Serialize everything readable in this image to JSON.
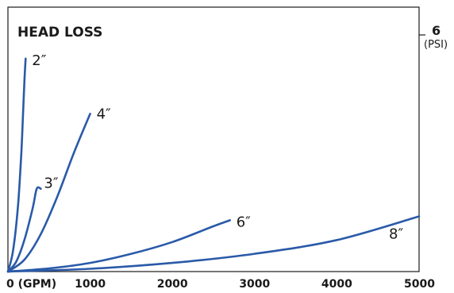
{
  "chart_data": {
    "type": "line",
    "title": "HEAD LOSS",
    "xlabel": "(GPM)",
    "ylabel": "(PSI)",
    "xlim": [
      0,
      5000
    ],
    "ylim": [
      0,
      6
    ],
    "x_ticks": [
      "0 (GPM)",
      "1000",
      "2000",
      "3000",
      "4000",
      "5000"
    ],
    "y_max_label": "6",
    "y_unit_label": "(PSI)",
    "grid": false,
    "line_color": "#2a5aa8",
    "series": [
      {
        "name": "2″",
        "x": [
          0,
          60,
          120,
          160,
          180,
          200,
          215
        ],
        "y": [
          0,
          0.5,
          1.6,
          2.9,
          3.8,
          4.8,
          5.4
        ]
      },
      {
        "name": "3″",
        "x": [
          0,
          100,
          200,
          300,
          350,
          400
        ],
        "y": [
          0,
          0.25,
          0.8,
          1.6,
          2.1,
          2.1
        ]
      },
      {
        "name": "4″",
        "x": [
          0,
          200,
          400,
          600,
          800,
          1000
        ],
        "y": [
          0,
          0.3,
          0.95,
          1.9,
          3.0,
          4.0
        ]
      },
      {
        "name": "6″",
        "x": [
          0,
          500,
          1000,
          1500,
          2000,
          2500,
          2700
        ],
        "y": [
          0,
          0.08,
          0.22,
          0.45,
          0.75,
          1.15,
          1.3
        ]
      },
      {
        "name": "8″",
        "x": [
          0,
          1000,
          2000,
          3000,
          4000,
          5000
        ],
        "y": [
          0,
          0.07,
          0.22,
          0.45,
          0.8,
          1.4
        ]
      }
    ]
  }
}
